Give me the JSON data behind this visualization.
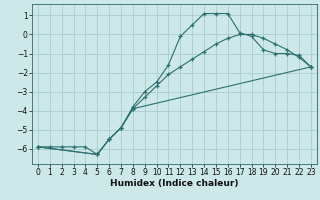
{
  "title": "",
  "xlabel": "Humidex (Indice chaleur)",
  "ylabel": "",
  "bg_color": "#cce8e8",
  "grid_color": "#aacccc",
  "line_color": "#2d7070",
  "xlim": [
    -0.5,
    23.5
  ],
  "ylim": [
    -6.8,
    1.6
  ],
  "xticks": [
    0,
    1,
    2,
    3,
    4,
    5,
    6,
    7,
    8,
    9,
    10,
    11,
    12,
    13,
    14,
    15,
    16,
    17,
    18,
    19,
    20,
    21,
    22,
    23
  ],
  "yticks": [
    -6,
    -5,
    -4,
    -3,
    -2,
    -1,
    0,
    1
  ],
  "line1_x": [
    0,
    1,
    2,
    3,
    4,
    5,
    6,
    7,
    8,
    9,
    10,
    11,
    12,
    13,
    14,
    15,
    16,
    17,
    18,
    19,
    20,
    21,
    22,
    23
  ],
  "line1_y": [
    -5.9,
    -5.9,
    -5.9,
    -5.9,
    -5.9,
    -6.3,
    -5.5,
    -4.9,
    -3.8,
    -3.0,
    -2.5,
    -1.6,
    -0.1,
    0.5,
    1.1,
    1.1,
    1.1,
    0.1,
    -0.1,
    -0.8,
    -1.0,
    -1.0,
    -1.1,
    -1.7
  ],
  "line2_x": [
    0,
    5,
    6,
    7,
    8,
    9,
    10,
    11,
    12,
    13,
    14,
    15,
    16,
    17,
    18,
    19,
    20,
    21,
    22,
    23
  ],
  "line2_y": [
    -5.9,
    -6.3,
    -5.5,
    -4.9,
    -3.9,
    -3.3,
    -2.7,
    -2.1,
    -1.7,
    -1.3,
    -0.9,
    -0.5,
    -0.2,
    0.0,
    0.0,
    -0.2,
    -0.5,
    -0.8,
    -1.2,
    -1.7
  ],
  "line3_x": [
    0,
    5,
    6,
    7,
    8,
    23
  ],
  "line3_y": [
    -5.9,
    -6.3,
    -5.5,
    -4.9,
    -3.9,
    -1.7
  ],
  "tick_fontsize": 5.5,
  "xlabel_fontsize": 6.5
}
